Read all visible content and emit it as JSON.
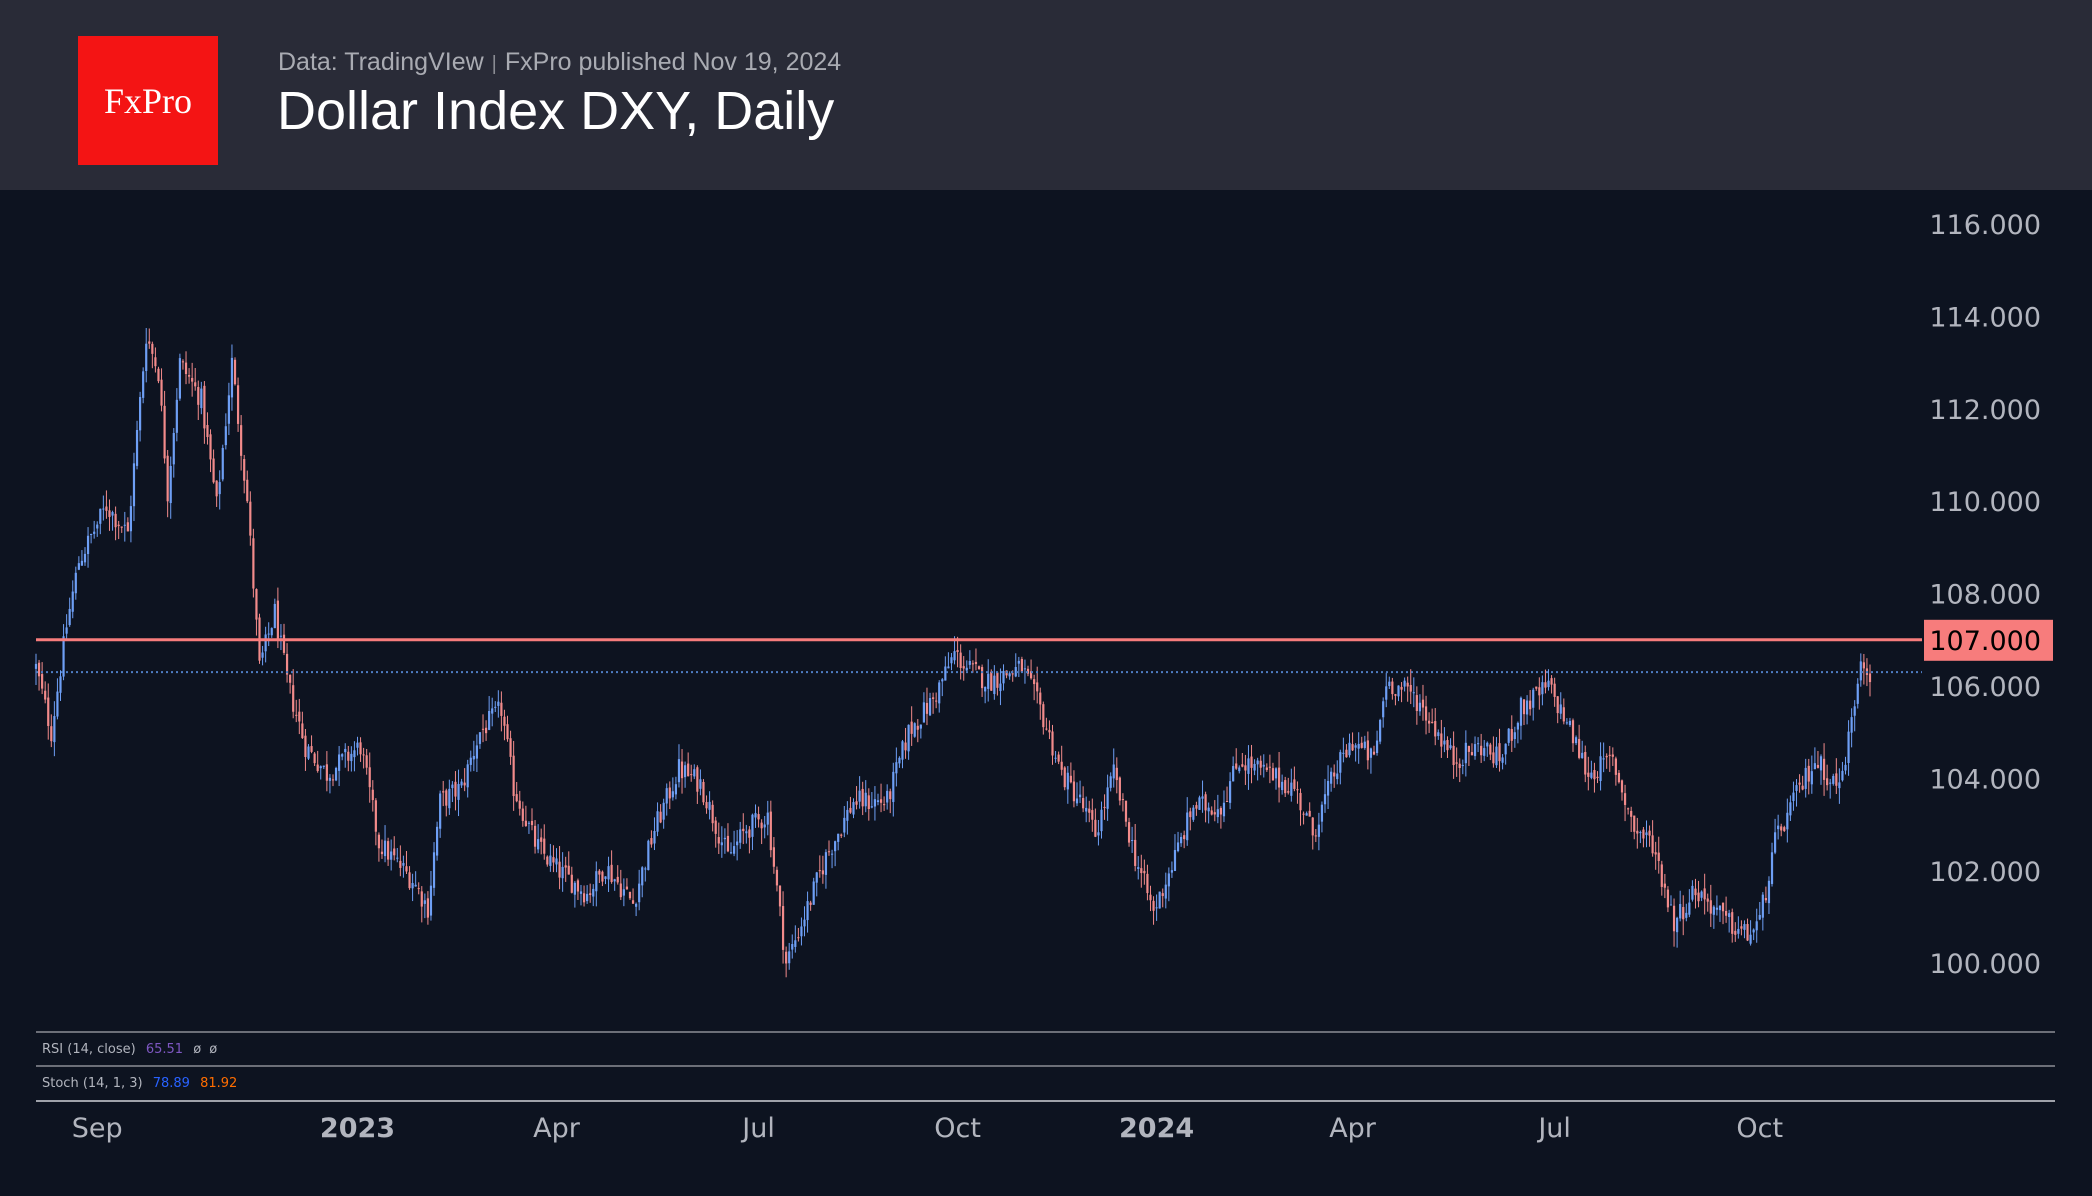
{
  "header": {
    "logo_text": "FxPro",
    "source": "Data: TradingVIew",
    "separator": "|",
    "published": "FxPro published Nov 19, 2024",
    "title": "Dollar Index DXY, Daily"
  },
  "indicators": {
    "rsi": {
      "label": "RSI (14, close)",
      "value": "65.51",
      "extra1": "ø",
      "extra2": "ø",
      "color": "#7e57c2"
    },
    "stoch": {
      "label": "Stoch (14, 1, 3)",
      "k": "78.89",
      "d": "81.92",
      "k_color": "#2962ff",
      "d_color": "#ff6d00"
    }
  },
  "colors": {
    "up": "#6e9ff5",
    "down": "#f28b8b",
    "level": "#f77c7c",
    "last_price_line": "#4f7ec4"
  },
  "chart_data": {
    "type": "candlestick",
    "title": "Dollar Index DXY, Daily",
    "ylim": [
      99,
      116.9
    ],
    "y_ticks": [
      "116.000",
      "114.000",
      "112.000",
      "110.000",
      "108.000",
      "106.000",
      "104.000",
      "102.000",
      "100.000"
    ],
    "y_tick_values": [
      116,
      114,
      112,
      110,
      108,
      106,
      104,
      102,
      100
    ],
    "x_ticks": [
      {
        "label": "Sep",
        "index": 20,
        "bold": false
      },
      {
        "label": "2023",
        "index": 105,
        "bold": true
      },
      {
        "label": "Apr",
        "index": 170,
        "bold": false
      },
      {
        "label": "Jul",
        "index": 236,
        "bold": false
      },
      {
        "label": "Oct",
        "index": 301,
        "bold": false
      },
      {
        "label": "2024",
        "index": 366,
        "bold": true
      },
      {
        "label": "Apr",
        "index": 430,
        "bold": false
      },
      {
        "label": "Jul",
        "index": 496,
        "bold": false
      },
      {
        "label": "Oct",
        "index": 563,
        "bold": false
      }
    ],
    "n_bars": 600,
    "level": {
      "value": 107.0,
      "label": "107.000"
    },
    "last_close": 106.3,
    "close_keypoints": [
      [
        0,
        106.4
      ],
      [
        5,
        105.0
      ],
      [
        10,
        107.3
      ],
      [
        14,
        108.7
      ],
      [
        23,
        109.9
      ],
      [
        30,
        109.3
      ],
      [
        36,
        113.6
      ],
      [
        40,
        112.8
      ],
      [
        43,
        110.2
      ],
      [
        47,
        113.0
      ],
      [
        54,
        112.2
      ],
      [
        59,
        109.9
      ],
      [
        64,
        113.0
      ],
      [
        69,
        110.0
      ],
      [
        73,
        106.4
      ],
      [
        78,
        107.6
      ],
      [
        82,
        106.1
      ],
      [
        88,
        104.7
      ],
      [
        95,
        104.1
      ],
      [
        106,
        104.7
      ],
      [
        112,
        102.6
      ],
      [
        123,
        101.8
      ],
      [
        128,
        101.2
      ],
      [
        132,
        103.5
      ],
      [
        139,
        103.8
      ],
      [
        145,
        105.0
      ],
      [
        152,
        105.5
      ],
      [
        156,
        103.8
      ],
      [
        163,
        102.6
      ],
      [
        169,
        102.1
      ],
      [
        180,
        101.5
      ],
      [
        186,
        102.1
      ],
      [
        195,
        101.3
      ],
      [
        202,
        102.9
      ],
      [
        210,
        104.2
      ],
      [
        217,
        103.9
      ],
      [
        226,
        102.3
      ],
      [
        232,
        102.9
      ],
      [
        239,
        103.2
      ],
      [
        245,
        100.0
      ],
      [
        252,
        101.2
      ],
      [
        258,
        102.3
      ],
      [
        267,
        103.5
      ],
      [
        278,
        103.5
      ],
      [
        285,
        105.0
      ],
      [
        293,
        105.7
      ],
      [
        300,
        106.7
      ],
      [
        304,
        106.4
      ],
      [
        311,
        106.1
      ],
      [
        322,
        106.4
      ],
      [
        328,
        105.5
      ],
      [
        335,
        104.1
      ],
      [
        341,
        103.5
      ],
      [
        346,
        102.8
      ],
      [
        352,
        104.1
      ],
      [
        359,
        102.3
      ],
      [
        365,
        101.1
      ],
      [
        372,
        102.3
      ],
      [
        378,
        103.4
      ],
      [
        387,
        103.4
      ],
      [
        393,
        104.4
      ],
      [
        402,
        104.1
      ],
      [
        411,
        103.8
      ],
      [
        417,
        102.8
      ],
      [
        424,
        104.1
      ],
      [
        430,
        104.8
      ],
      [
        437,
        104.4
      ],
      [
        441,
        106.1
      ],
      [
        450,
        105.8
      ],
      [
        457,
        105.1
      ],
      [
        463,
        104.4
      ],
      [
        472,
        104.7
      ],
      [
        478,
        104.4
      ],
      [
        485,
        105.5
      ],
      [
        494,
        106.0
      ],
      [
        500,
        105.2
      ],
      [
        507,
        104.1
      ],
      [
        515,
        104.4
      ],
      [
        522,
        102.9
      ],
      [
        528,
        102.6
      ],
      [
        535,
        100.9
      ],
      [
        542,
        101.6
      ],
      [
        548,
        101.2
      ],
      [
        552,
        100.9
      ],
      [
        559,
        100.6
      ],
      [
        563,
        100.9
      ],
      [
        568,
        102.6
      ],
      [
        574,
        103.5
      ],
      [
        581,
        104.4
      ],
      [
        589,
        103.8
      ],
      [
        593,
        105.2
      ],
      [
        596,
        106.7
      ],
      [
        599,
        106.3
      ]
    ]
  }
}
